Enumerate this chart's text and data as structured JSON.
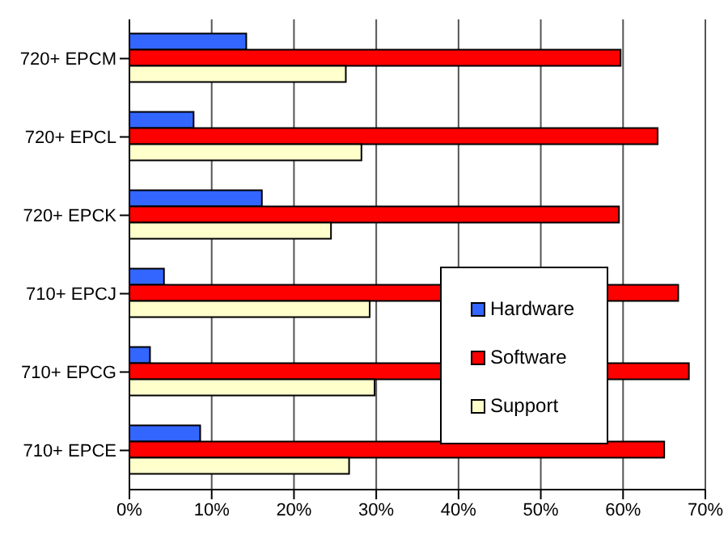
{
  "chart_data": {
    "type": "bar",
    "orientation": "horizontal",
    "categories": [
      "720+ EPCM",
      "720+ EPCL",
      "720+ EPCK",
      "710+ EPCJ",
      "710+ EPCG",
      "710+ EPCE"
    ],
    "series": [
      {
        "name": "Hardware",
        "color": "#3366ff",
        "values": [
          14.2,
          7.8,
          16.1,
          4.2,
          2.5,
          8.6
        ]
      },
      {
        "name": "Software",
        "color": "#ff0000",
        "values": [
          59.7,
          64.2,
          59.5,
          66.7,
          68.0,
          65.0
        ]
      },
      {
        "name": "Support",
        "color": "#ffffcc",
        "values": [
          26.3,
          28.2,
          24.5,
          29.2,
          29.8,
          26.7
        ]
      }
    ],
    "xlim": [
      0,
      70
    ],
    "xticks": [
      {
        "value": 0,
        "label": "0%"
      },
      {
        "value": 10,
        "label": "10%"
      },
      {
        "value": 20,
        "label": "20%"
      },
      {
        "value": 30,
        "label": "30%"
      },
      {
        "value": 40,
        "label": "40%"
      },
      {
        "value": 50,
        "label": "50%"
      },
      {
        "value": 60,
        "label": "60%"
      },
      {
        "value": 70,
        "label": "70%"
      }
    ],
    "grid": "x",
    "legend": "right"
  }
}
